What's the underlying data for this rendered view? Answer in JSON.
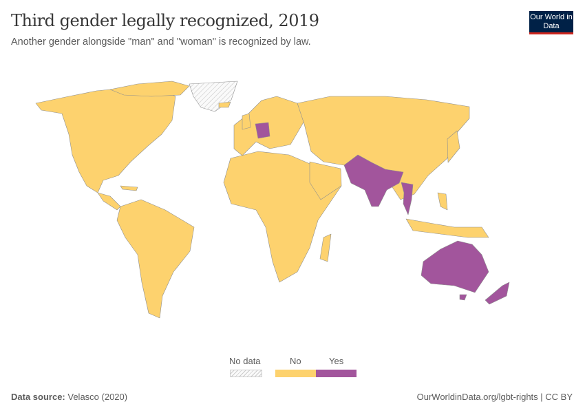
{
  "header": {
    "title": "Third gender legally recognized, 2019",
    "subtitle": "Another gender alongside \"man\" and \"woman\" is recognized by law.",
    "logo_text": "Our World in Data"
  },
  "chart_data": {
    "type": "choropleth-map",
    "year": 2019,
    "legend": {
      "placement": "bottom-center",
      "categories": [
        {
          "label": "No data",
          "color": "hatched"
        },
        {
          "label": "No",
          "color": "#fdd26e"
        },
        {
          "label": "Yes",
          "color": "#a2559c"
        }
      ]
    }
  },
  "footer": {
    "source_label": "Data source:",
    "source_value": "Velasco (2020)",
    "url_license": "OurWorldinData.org/lgbt-rights | CC BY"
  }
}
